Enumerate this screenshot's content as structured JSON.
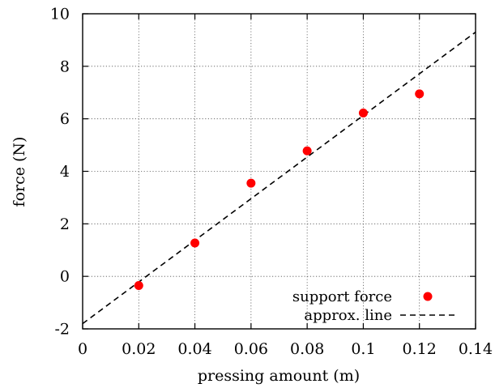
{
  "chart_data": {
    "type": "scatter",
    "xlabel": "pressing amount (m)",
    "ylabel": "force (N)",
    "xlim": [
      0,
      0.14
    ],
    "ylim": [
      -2,
      10
    ],
    "x_ticks": [
      "0",
      "0.02",
      "0.04",
      "0.06",
      "0.08",
      "0.1",
      "0.12",
      "0.14"
    ],
    "y_ticks": [
      "-2",
      "0",
      "2",
      "4",
      "6",
      "8",
      "10"
    ],
    "grid": true,
    "legend_position": "bottom-right",
    "series": [
      {
        "name": "support force",
        "kind": "points",
        "color": "#ff0000",
        "x": [
          0.02,
          0.04,
          0.06,
          0.08,
          0.1,
          0.12
        ],
        "y": [
          -0.35,
          1.27,
          3.55,
          4.78,
          6.22,
          6.95
        ]
      },
      {
        "name": "approx. line",
        "kind": "dashed-line",
        "color": "#000000",
        "x": [
          0,
          0.14
        ],
        "y": [
          -1.8,
          9.3
        ]
      }
    ]
  }
}
